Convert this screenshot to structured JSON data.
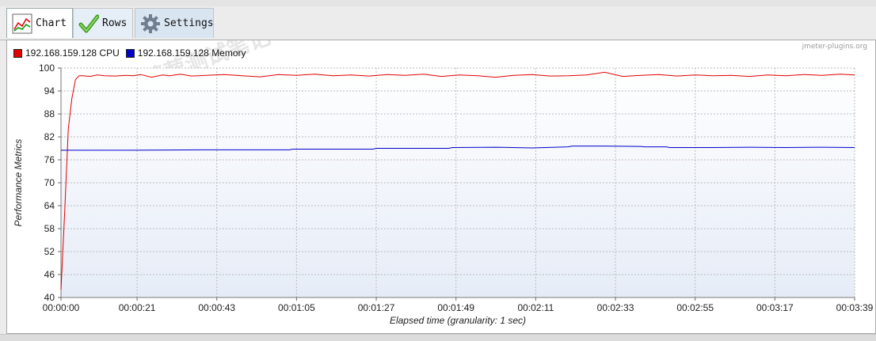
{
  "tabs": [
    {
      "label": "Chart",
      "icon": "chart-icon"
    },
    {
      "label": "Rows",
      "icon": "checkmark-icon"
    },
    {
      "label": "Settings",
      "icon": "gear-icon"
    }
  ],
  "credit": "jmeter-plugins.org",
  "watermark": "小菠萝测试笔记",
  "colors": {
    "cpu": "#e00000",
    "memory": "#0000cc",
    "plot_bg_top": "#ffffff",
    "plot_bg_bottom": "#e6ecf7"
  },
  "chart_data": {
    "type": "line",
    "xlabel": "Elapsed time (granularity: 1 sec)",
    "ylabel": "Performance Metrics",
    "ylim": [
      40,
      100
    ],
    "xlim": [
      0,
      219
    ],
    "y_ticks": [
      "40",
      "46",
      "52",
      "58",
      "64",
      "70",
      "76",
      "82",
      "88",
      "94",
      "100"
    ],
    "x_ticks": [
      "00:00:00",
      "00:00:21",
      "00:00:43",
      "00:01:05",
      "00:01:27",
      "00:01:49",
      "00:02:11",
      "00:02:33",
      "00:02:55",
      "00:03:17",
      "00:03:39"
    ],
    "grid": true,
    "legend_position": "top-left",
    "series": [
      {
        "name": "192.168.159.128 CPU",
        "color": "#e00000",
        "x": [
          0,
          1,
          2,
          3,
          4,
          5,
          6,
          8,
          10,
          12,
          15,
          18,
          20,
          22,
          25,
          28,
          30,
          33,
          36,
          40,
          45,
          50,
          55,
          60,
          65,
          70,
          75,
          80,
          85,
          90,
          95,
          100,
          105,
          110,
          115,
          120,
          125,
          130,
          135,
          140,
          145,
          150,
          155,
          160,
          165,
          170,
          175,
          180,
          185,
          190,
          195,
          200,
          205,
          210,
          215,
          219
        ],
        "values": [
          42,
          62,
          84,
          92,
          97,
          98,
          98,
          97.8,
          98.2,
          98,
          97.9,
          98.1,
          98,
          98.3,
          97.6,
          98.2,
          98,
          98.4,
          97.9,
          98.1,
          98.3,
          98,
          97.7,
          98.3,
          98.1,
          98.4,
          98,
          98.2,
          97.9,
          98.3,
          98.1,
          98.4,
          97.8,
          98.2,
          98,
          97.6,
          98.1,
          98.3,
          97.9,
          98,
          98.2,
          98.9,
          97.8,
          98.1,
          98.3,
          97.9,
          98.2,
          98,
          98.1,
          97.8,
          98.2,
          98,
          98.3,
          98.1,
          98.4,
          98.2
        ]
      },
      {
        "name": "192.168.159.128 Memory",
        "color": "#0000cc",
        "x": [
          0,
          20,
          40,
          60,
          63,
          64,
          80,
          86,
          87,
          100,
          107,
          108,
          120,
          130,
          140,
          141,
          150,
          160,
          161,
          167,
          168,
          180,
          190,
          200,
          210,
          219
        ],
        "values": [
          78.5,
          78.5,
          78.6,
          78.6,
          78.6,
          78.8,
          78.8,
          78.8,
          79.0,
          79.0,
          79.0,
          79.2,
          79.3,
          79.1,
          79.4,
          79.6,
          79.6,
          79.5,
          79.4,
          79.4,
          79.2,
          79.2,
          79.3,
          79.2,
          79.3,
          79.2
        ]
      }
    ]
  }
}
